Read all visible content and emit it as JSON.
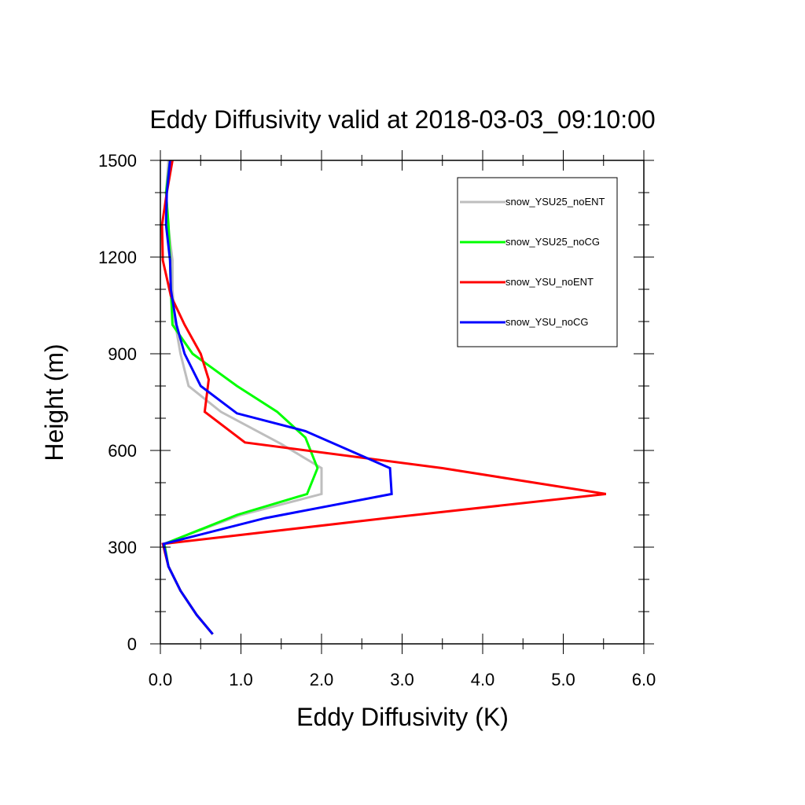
{
  "chart_data": {
    "type": "line",
    "title": "Eddy Diffusivity valid at 2018-03-03_09:10:00",
    "xlabel": "Eddy Diffusivity (K)",
    "ylabel": "Height (m)",
    "xlim": [
      0,
      6
    ],
    "ylim": [
      0,
      1500
    ],
    "x_ticks": [
      0,
      1,
      2,
      3,
      4,
      5,
      6
    ],
    "x_tick_labels": [
      "0.0",
      "1.0",
      "2.0",
      "3.0",
      "4.0",
      "5.0",
      "6.0"
    ],
    "y_ticks": [
      0,
      300,
      600,
      900,
      1200,
      1500
    ],
    "y_tick_labels": [
      "0",
      "300",
      "600",
      "900",
      "1200",
      "1500"
    ],
    "grid": false,
    "legend_position": "top-right",
    "series": [
      {
        "name": "snow_YSU25_noENT",
        "color": "#bebebe",
        "points": [
          [
            0.65,
            30
          ],
          [
            0.45,
            90
          ],
          [
            0.25,
            165
          ],
          [
            0.1,
            240
          ],
          [
            0.04,
            310
          ],
          [
            1.0,
            400
          ],
          [
            2.0,
            465
          ],
          [
            2.0,
            545
          ],
          [
            1.5,
            620
          ],
          [
            0.75,
            720
          ],
          [
            0.35,
            800
          ],
          [
            0.25,
            900
          ],
          [
            0.18,
            1000
          ],
          [
            0.15,
            1100
          ],
          [
            0.15,
            1190
          ],
          [
            0.1,
            1290
          ],
          [
            0.07,
            1400
          ],
          [
            0.1,
            1500
          ]
        ]
      },
      {
        "name": "snow_YSU25_noCG",
        "color": "#00ff00",
        "points": [
          [
            0.65,
            30
          ],
          [
            0.45,
            90
          ],
          [
            0.25,
            165
          ],
          [
            0.1,
            240
          ],
          [
            0.05,
            310
          ],
          [
            0.95,
            400
          ],
          [
            1.82,
            465
          ],
          [
            1.95,
            545
          ],
          [
            1.8,
            640
          ],
          [
            1.45,
            720
          ],
          [
            0.95,
            800
          ],
          [
            0.4,
            900
          ],
          [
            0.15,
            990
          ],
          [
            0.13,
            1100
          ],
          [
            0.12,
            1200
          ],
          [
            0.1,
            1300
          ],
          [
            0.07,
            1400
          ],
          [
            0.12,
            1500
          ]
        ]
      },
      {
        "name": "snow_YSU_noENT",
        "color": "#ff0000",
        "points": [
          [
            0.65,
            30
          ],
          [
            0.45,
            90
          ],
          [
            0.25,
            165
          ],
          [
            0.1,
            240
          ],
          [
            0.03,
            310
          ],
          [
            2.8,
            390
          ],
          [
            5.53,
            465
          ],
          [
            3.5,
            545
          ],
          [
            1.05,
            625
          ],
          [
            0.55,
            720
          ],
          [
            0.6,
            820
          ],
          [
            0.5,
            900
          ],
          [
            0.3,
            990
          ],
          [
            0.13,
            1080
          ],
          [
            0.03,
            1190
          ],
          [
            0.02,
            1300
          ],
          [
            0.08,
            1400
          ],
          [
            0.15,
            1500
          ]
        ]
      },
      {
        "name": "snow_YSU_noCG",
        "color": "#0000ff",
        "points": [
          [
            0.65,
            30
          ],
          [
            0.45,
            90
          ],
          [
            0.25,
            165
          ],
          [
            0.1,
            240
          ],
          [
            0.04,
            310
          ],
          [
            1.3,
            390
          ],
          [
            2.87,
            465
          ],
          [
            2.85,
            545
          ],
          [
            1.8,
            660
          ],
          [
            0.95,
            715
          ],
          [
            0.5,
            800
          ],
          [
            0.3,
            900
          ],
          [
            0.2,
            990
          ],
          [
            0.13,
            1100
          ],
          [
            0.12,
            1190
          ],
          [
            0.07,
            1300
          ],
          [
            0.08,
            1400
          ],
          [
            0.12,
            1500
          ]
        ]
      }
    ]
  }
}
